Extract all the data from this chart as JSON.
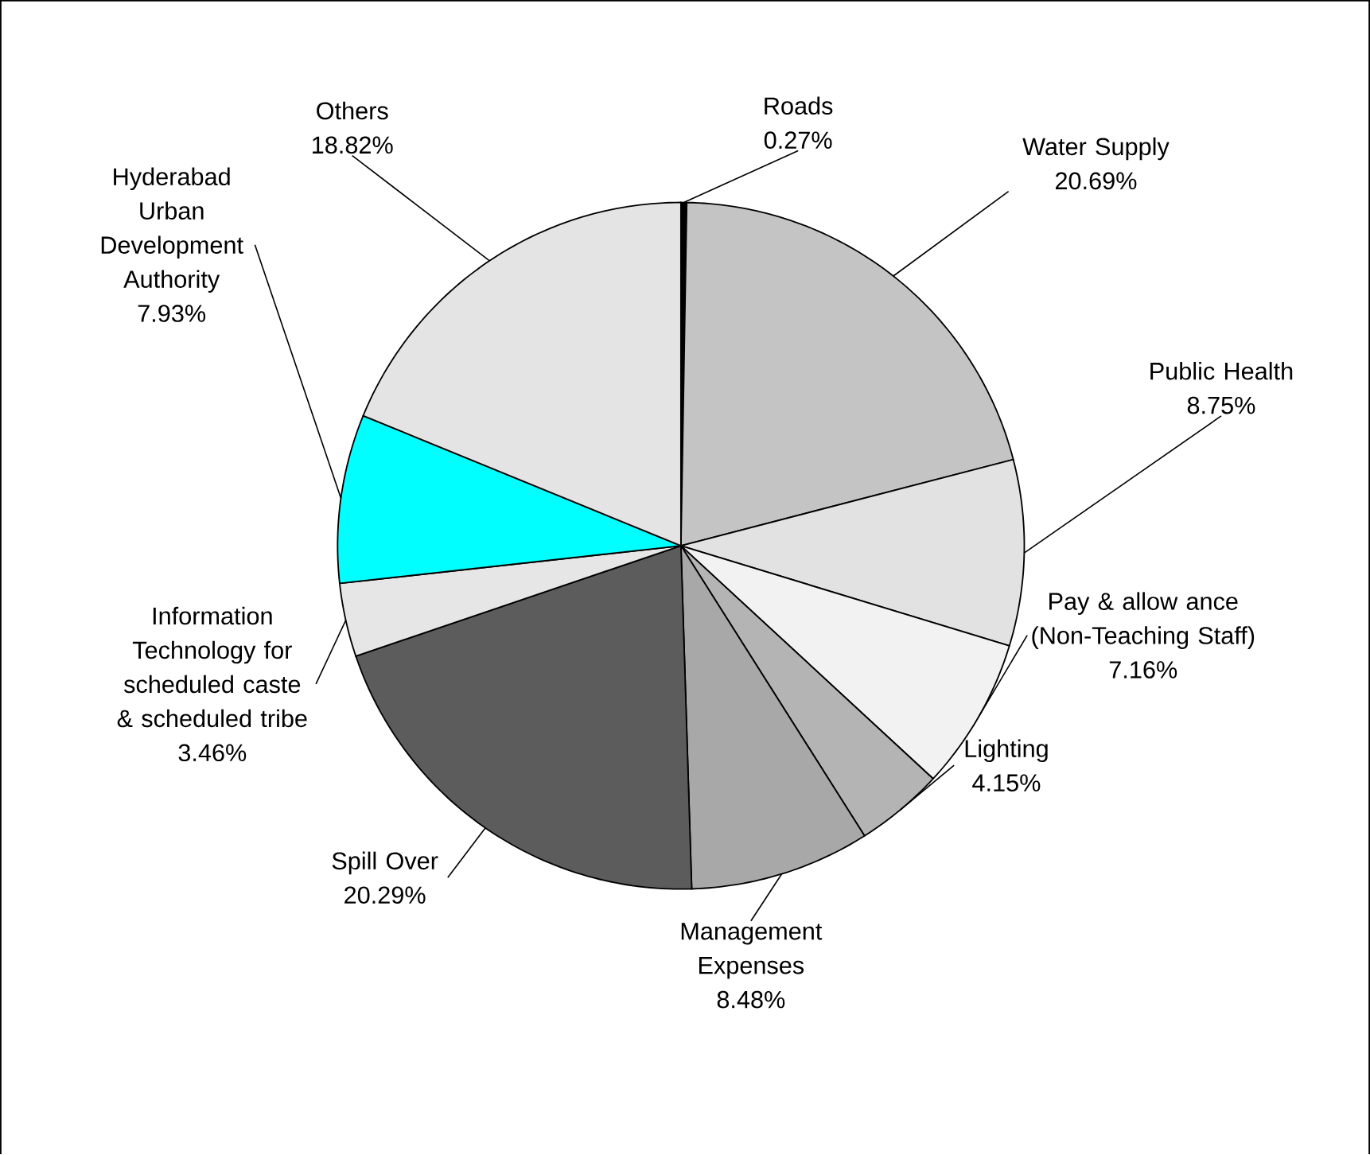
{
  "chart_data": {
    "type": "pie",
    "categories": [
      "Roads",
      "Water Supply",
      "Public Health",
      "Pay & allow ance (Non-Teaching Staff)",
      "Lighting",
      "Management Expenses",
      "Spill Over",
      "Information Technology for scheduled caste & scheduled tribe",
      "Hyderabad Urban Development Authority",
      "Others"
    ],
    "values": [
      0.27,
      20.69,
      8.75,
      7.16,
      4.15,
      8.48,
      20.29,
      3.46,
      7.93,
      18.82
    ],
    "value_labels": [
      "0.27%",
      "20.69%",
      "8.75%",
      "7.16%",
      "4.15%",
      "8.48%",
      "20.29%",
      "3.46%",
      "7.93%",
      "18.82%"
    ],
    "colors": [
      "#000000",
      "#c4c4c4",
      "#e2e2e2",
      "#f2f2f2",
      "#b4b4b4",
      "#a8a8a8",
      "#5c5c5c",
      "#e6e6e6",
      "#00ffff",
      "#e4e4e4"
    ]
  }
}
